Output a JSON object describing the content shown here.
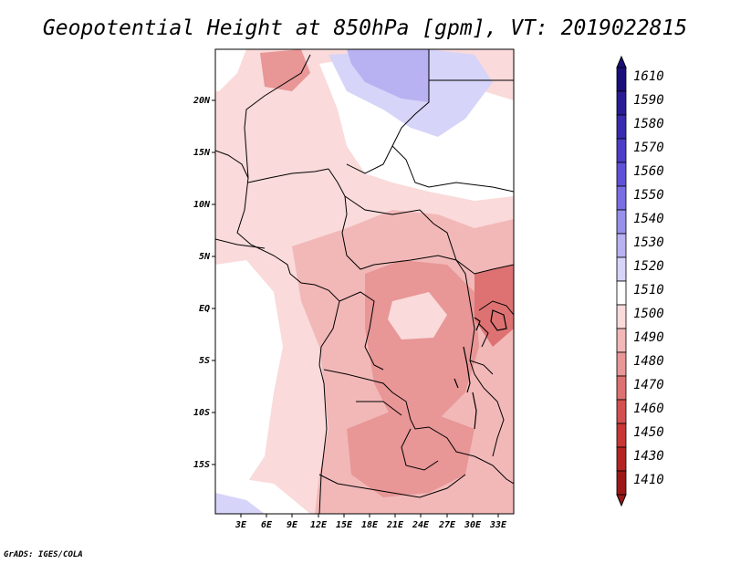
{
  "title": "Geopotential Height at 850hPa [gpm], VT: 2019022815",
  "credit": "GrADS: IGES/COLA",
  "map": {
    "lat_labels": [
      "20N",
      "15N",
      "10N",
      "5N",
      "EQ",
      "5S",
      "10S",
      "15S"
    ],
    "lon_labels": [
      "3E",
      "6E",
      "9E",
      "12E",
      "15E",
      "18E",
      "21E",
      "24E",
      "27E",
      "30E",
      "33E"
    ]
  },
  "colorbar": {
    "labels": [
      "1610",
      "1590",
      "1580",
      "1570",
      "1560",
      "1550",
      "1540",
      "1530",
      "1520",
      "1510",
      "1500",
      "1490",
      "1480",
      "1470",
      "1460",
      "1450",
      "1430",
      "1410"
    ],
    "colors": [
      "#1a0f7a",
      "#2a1c96",
      "#3a2cb0",
      "#4c3ec8",
      "#6052d8",
      "#7a6ee4",
      "#9890ec",
      "#b8b2f2",
      "#d6d4f8",
      "#ffffff",
      "#fadada",
      "#f2b8b8",
      "#e89696",
      "#de7272",
      "#d45050",
      "#c83636",
      "#b42424",
      "#9c1818"
    ]
  }
}
